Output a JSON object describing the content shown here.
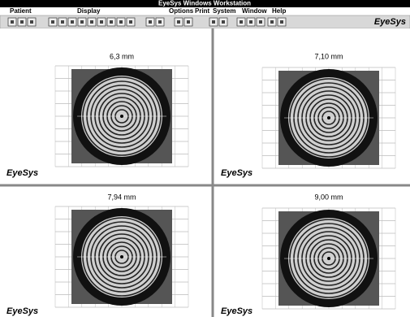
{
  "window": {
    "title": "EyeSys Windows Workstation",
    "menu": [
      "Patient",
      "Display",
      "Options",
      "Print",
      "System",
      "Window",
      "Help"
    ],
    "brand": "EyeSys"
  },
  "panels": [
    {
      "label": "6,3 mm",
      "logo": "EyeSys"
    },
    {
      "label": "7,10 mm",
      "logo": "EyeSys"
    },
    {
      "label": "7,94 mm",
      "logo": "EyeSys"
    },
    {
      "label": "9,00 mm",
      "logo": "EyeSys"
    }
  ]
}
